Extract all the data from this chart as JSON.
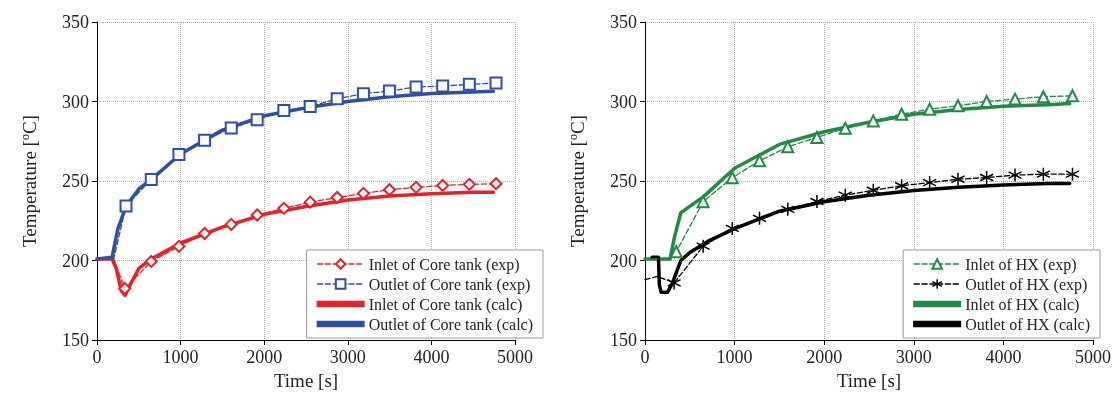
{
  "chart_data": [
    {
      "type": "line",
      "xlabel": "Time [s]",
      "ylabel": "Temperature [$^{o}$C]",
      "xlim": [
        0,
        5000
      ],
      "xticks": [
        0,
        1000,
        2000,
        3000,
        4000,
        5000
      ],
      "ylim": [
        150,
        350
      ],
      "yticks": [
        150,
        200,
        250,
        300,
        350
      ],
      "grid": true,
      "legend": "bottom right",
      "series": [
        {
          "name": "Inlet of Core tank (exp)",
          "color": "#e8202a",
          "marker": "diamond",
          "line_style": "dashed",
          "x": [
            0,
            200,
            331,
            649,
            980,
            1287,
            1606,
            1916,
            2235,
            2550,
            2873,
            3187,
            3498,
            3817,
            4135,
            4454,
            4773
          ],
          "values": [
            201,
            201,
            182.4,
            199.4,
            208.9,
            217,
            222.7,
            228.6,
            232.8,
            236.7,
            239.6,
            242.2,
            244.5,
            246,
            247.2,
            247.9,
            248.3
          ]
        },
        {
          "name": "Outlet of Core tank (exp)",
          "color": "#2e4fa3",
          "marker": "square",
          "line_style": "dashed",
          "x": [
            0,
            200,
            347,
            649,
            980,
            1287,
            1606,
            1916,
            2235,
            2550,
            2873,
            3187,
            3498,
            3817,
            4135,
            4454,
            4773
          ],
          "values": [
            201,
            201,
            234.3,
            251,
            266.7,
            275.6,
            283.3,
            288.6,
            294.3,
            296.8,
            301.7,
            304.9,
            306.6,
            309.1,
            309.7,
            310.8,
            311.6
          ]
        },
        {
          "name": "Inlet of Core tank (calc)",
          "color": "#e8202a",
          "marker": "none",
          "line_style": "solid",
          "x": [
            0,
            180,
            230,
            290,
            335,
            400,
            500,
            650,
            1000,
            1500,
            2000,
            2500,
            3000,
            3500,
            4000,
            4500,
            4740
          ],
          "values": [
            201,
            201,
            195,
            181,
            178,
            185,
            195,
            201,
            211,
            221,
            229,
            234,
            238,
            240.5,
            242,
            243,
            243
          ]
        },
        {
          "name": "Outlet of Core tank (calc)",
          "color": "#2e4fa3",
          "marker": "none",
          "line_style": "solid",
          "x": [
            0,
            180,
            250,
            347,
            500,
            650,
            1000,
            1500,
            2000,
            2500,
            3000,
            3500,
            4000,
            4500,
            4740
          ],
          "values": [
            201,
            202,
            220,
            234,
            245,
            251,
            267,
            282,
            291,
            296,
            300,
            303,
            305,
            306,
            306.5
          ]
        }
      ]
    },
    {
      "type": "line",
      "xlabel": "Time [s]",
      "ylabel": "Temperature [$^{o}$C]",
      "xlim": [
        0,
        5000
      ],
      "xticks": [
        0,
        1000,
        2000,
        3000,
        4000,
        5000
      ],
      "ylim": [
        150,
        350
      ],
      "yticks": [
        150,
        200,
        250,
        300,
        350
      ],
      "grid": true,
      "legend": "bottom right",
      "series": [
        {
          "name": "Inlet of HX (exp)",
          "color": "#1e8c45",
          "marker": "triangle",
          "line_style": "dashed",
          "x": [
            0,
            250,
            349,
            649,
            974,
            1278,
            1594,
            1919,
            2235,
            2548,
            2864,
            3177,
            3493,
            3813,
            4130,
            4446,
            4771
          ],
          "values": [
            201,
            201,
            205.5,
            237,
            252.1,
            262.7,
            271.5,
            277.4,
            283.2,
            287.8,
            292,
            295.2,
            297.3,
            300,
            301.5,
            303,
            303.6
          ]
        },
        {
          "name": "Outlet of HX (exp)",
          "color": "#000000",
          "marker": "cross",
          "line_style": "dashed",
          "x": [
            0,
            140,
            325,
            649,
            974,
            1278,
            1594,
            1919,
            2235,
            2548,
            2864,
            3177,
            3493,
            3813,
            4130,
            4446,
            4771
          ],
          "values": [
            188,
            190,
            185.9,
            209,
            220.2,
            226.5,
            232.2,
            237.1,
            241.1,
            244.2,
            247,
            249,
            251.1,
            252.2,
            253.7,
            254.3,
            254.3
          ]
        },
        {
          "name": "Inlet of HX (calc)",
          "color": "#1e8c45",
          "marker": "none",
          "line_style": "solid",
          "x": [
            0,
            280,
            330,
            400,
            500,
            650,
            1000,
            1500,
            2000,
            2500,
            3000,
            3500,
            4000,
            4500,
            4740
          ],
          "values": [
            201,
            201,
            215,
            230,
            234,
            240,
            258,
            273,
            281,
            287,
            292,
            295,
            297,
            298,
            298.7
          ]
        },
        {
          "name": "Outlet of HX (calc)",
          "color": "#000000",
          "marker": "none",
          "line_style": "solid",
          "x": [
            80,
            150,
            160,
            180,
            250,
            300,
            400,
            500,
            700,
            1000,
            1500,
            2000,
            2500,
            3000,
            3500,
            4000,
            4500,
            4740
          ],
          "values": [
            202,
            202,
            185,
            180,
            180,
            185,
            200,
            205,
            212,
            220,
            231,
            237,
            241,
            244,
            246,
            247.5,
            248.5,
            248.5
          ]
        }
      ]
    }
  ]
}
